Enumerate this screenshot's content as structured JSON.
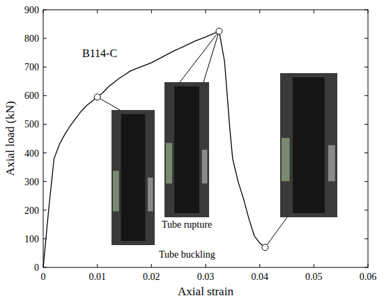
{
  "chart_data": {
    "type": "line",
    "label": "B114-C",
    "x_label": "Axial strain",
    "y_label": "Axial load (kN)",
    "xlim": [
      0,
      0.06
    ],
    "xticks": [
      0,
      0.01,
      0.02,
      0.03,
      0.04,
      0.05,
      0.06
    ],
    "ylim": [
      0,
      900
    ],
    "yticks": [
      0,
      100,
      200,
      300,
      400,
      500,
      600,
      700,
      800,
      900
    ],
    "grid": false,
    "series": [
      {
        "name": "B114-C",
        "color": "#000000",
        "line_style": "solid",
        "x": [
          0,
          0.001,
          0.002,
          0.003,
          0.004,
          0.005,
          0.006,
          0.007,
          0.008,
          0.009,
          0.01,
          0.011,
          0.012,
          0.013,
          0.014,
          0.015,
          0.016,
          0.017,
          0.018,
          0.02,
          0.022,
          0.024,
          0.026,
          0.028,
          0.03,
          0.0325,
          0.0335,
          0.034,
          0.0345,
          0.035,
          0.036,
          0.037,
          0.038,
          0.039,
          0.04,
          0.041
        ],
        "values": [
          0,
          200,
          380,
          430,
          465,
          495,
          520,
          545,
          565,
          580,
          595,
          610,
          630,
          645,
          660,
          672,
          685,
          693,
          700,
          715,
          735,
          755,
          772,
          790,
          805,
          825,
          720,
          600,
          480,
          380,
          300,
          240,
          170,
          110,
          85,
          70
        ]
      }
    ],
    "markers": {
      "marker": "circle",
      "x": [
        0.01,
        0.0325,
        0.041
      ],
      "y": [
        595,
        825,
        70
      ]
    },
    "annotations": [
      {
        "text": "Tube buckling",
        "x": 0.01,
        "y": 595
      },
      {
        "text": "Tube rupture",
        "x": 0.0325,
        "y": 825
      }
    ]
  }
}
